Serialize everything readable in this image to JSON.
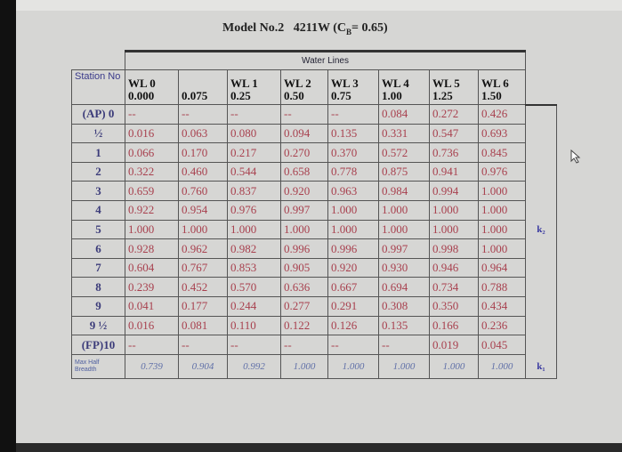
{
  "title": {
    "model": "Model No.2",
    "code": "4211W (C",
    "sub": "B",
    "coef": "= 0.65)"
  },
  "group_header": "Water Lines",
  "columns": [
    {
      "name": "Station No",
      "offset": ""
    },
    {
      "name": "WL 0",
      "offset": "0.000"
    },
    {
      "name": "",
      "offset": "0.075"
    },
    {
      "name": "WL 1",
      "offset": "0.25"
    },
    {
      "name": "WL 2",
      "offset": "0.50"
    },
    {
      "name": "WL 3",
      "offset": "0.75"
    },
    {
      "name": "WL 4",
      "offset": "1.00"
    },
    {
      "name": "WL 5",
      "offset": "1.25"
    },
    {
      "name": "WL 6",
      "offset": "1.50"
    }
  ],
  "rows": [
    {
      "station": "(AP) 0",
      "values": [
        "--",
        "--",
        "--",
        "--",
        "--",
        "0.084",
        "0.272",
        "0.426"
      ]
    },
    {
      "station": "½",
      "values": [
        "0.016",
        "0.063",
        "0.080",
        "0.094",
        "0.135",
        "0.331",
        "0.547",
        "0.693"
      ]
    },
    {
      "station": "1",
      "values": [
        "0.066",
        "0.170",
        "0.217",
        "0.270",
        "0.370",
        "0.572",
        "0.736",
        "0.845"
      ]
    },
    {
      "station": "2",
      "values": [
        "0.322",
        "0.460",
        "0.544",
        "0.658",
        "0.778",
        "0.875",
        "0.941",
        "0.976"
      ]
    },
    {
      "station": "3",
      "values": [
        "0.659",
        "0.760",
        "0.837",
        "0.920",
        "0.963",
        "0.984",
        "0.994",
        "1.000"
      ]
    },
    {
      "station": "4",
      "values": [
        "0.922",
        "0.954",
        "0.976",
        "0.997",
        "1.000",
        "1.000",
        "1.000",
        "1.000"
      ]
    },
    {
      "station": "5",
      "values": [
        "1.000",
        "1.000",
        "1.000",
        "1.000",
        "1.000",
        "1.000",
        "1.000",
        "1.000"
      ],
      "side": "k₂"
    },
    {
      "station": "6",
      "values": [
        "0.928",
        "0.962",
        "0.982",
        "0.996",
        "0.996",
        "0.997",
        "0.998",
        "1.000"
      ]
    },
    {
      "station": "7",
      "values": [
        "0.604",
        "0.767",
        "0.853",
        "0.905",
        "0.920",
        "0.930",
        "0.946",
        "0.964"
      ]
    },
    {
      "station": "8",
      "values": [
        "0.239",
        "0.452",
        "0.570",
        "0.636",
        "0.667",
        "0.694",
        "0.734",
        "0.788"
      ]
    },
    {
      "station": "9",
      "values": [
        "0.041",
        "0.177",
        "0.244",
        "0.277",
        "0.291",
        "0.308",
        "0.350",
        "0.434"
      ]
    },
    {
      "station": "9 ½",
      "values": [
        "0.016",
        "0.081",
        "0.110",
        "0.122",
        "0.126",
        "0.135",
        "0.166",
        "0.236"
      ]
    },
    {
      "station": "(FP)10",
      "values": [
        "--",
        "--",
        "--",
        "--",
        "--",
        "--",
        "0.019",
        "0.045"
      ]
    }
  ],
  "footer": {
    "label": "Max Half Breadth",
    "values": [
      "0.739",
      "0.904",
      "0.992",
      "1.000",
      "1.000",
      "1.000",
      "1.000",
      "1.000"
    ],
    "side": "k₁"
  }
}
